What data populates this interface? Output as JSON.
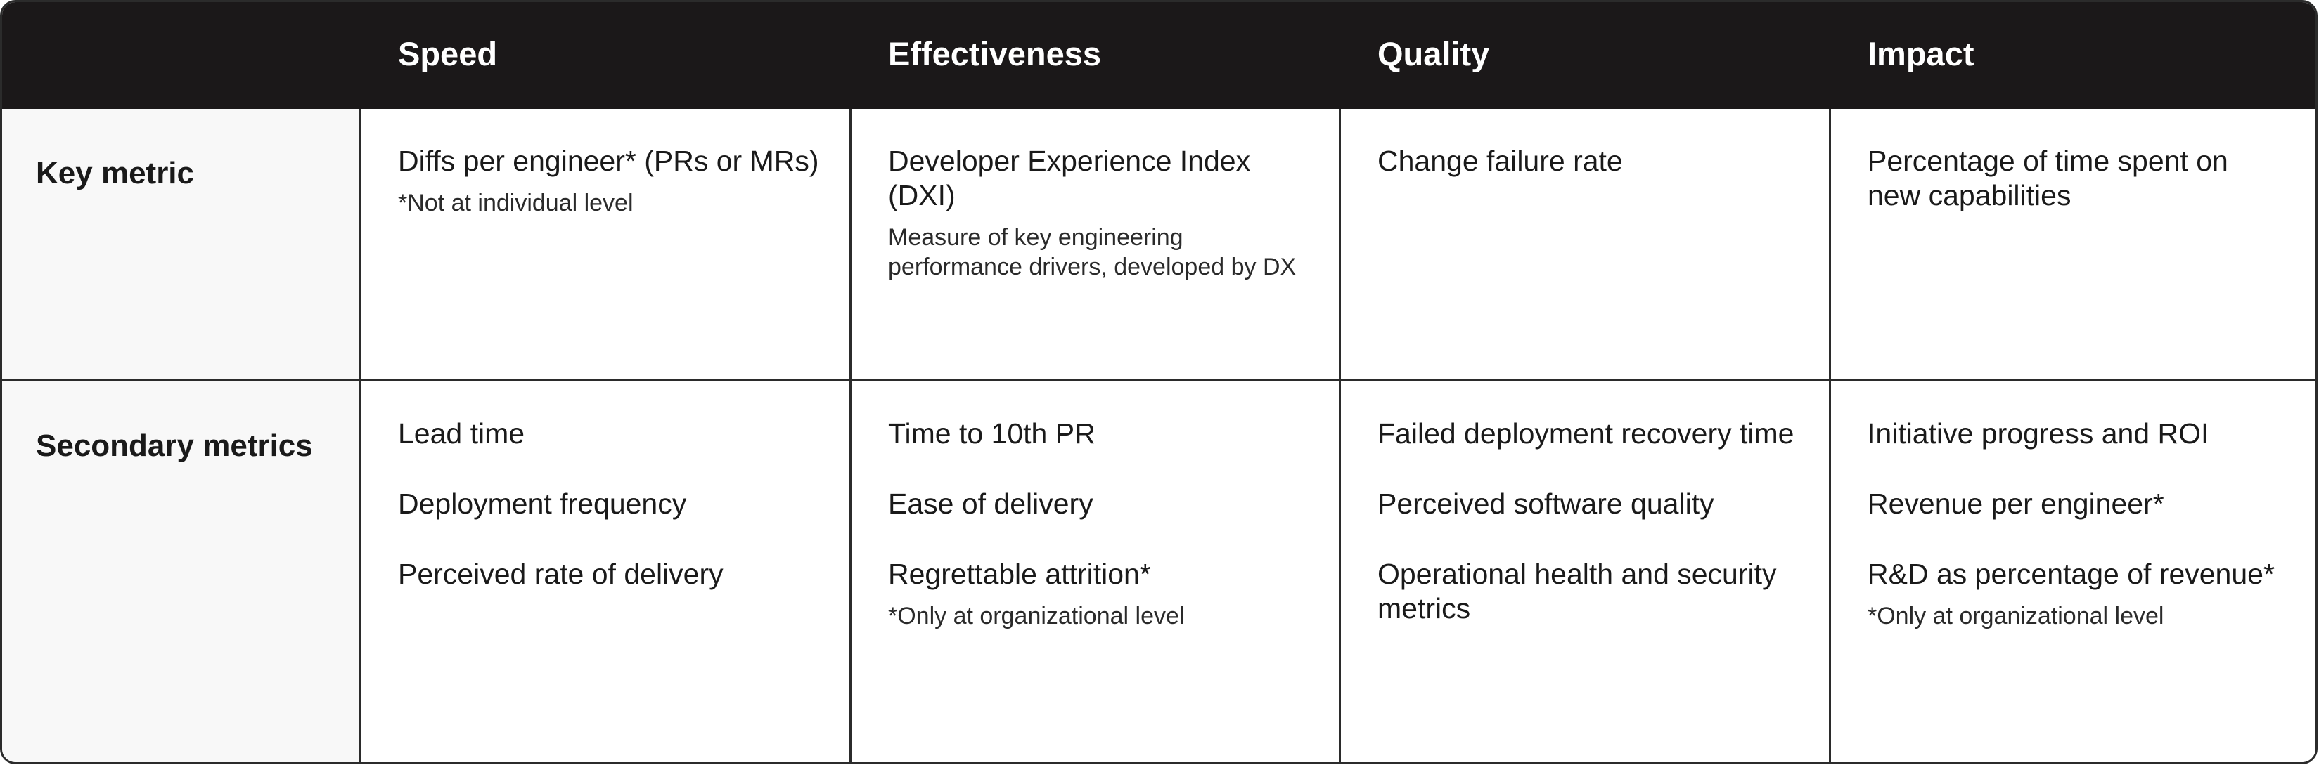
{
  "header": {
    "corner": "",
    "columns": [
      "Speed",
      "Effectiveness",
      "Quality",
      "Impact"
    ]
  },
  "rows": {
    "key": {
      "label": "Key metric",
      "speed": {
        "metric": "Diffs per engineer* (PRs or MRs)",
        "note": "*Not at individual level"
      },
      "effectiveness": {
        "metric": "Developer Experience Index (DXI)",
        "note": "Measure of key engineering performance drivers, developed by DX"
      },
      "quality": {
        "metric": "Change failure rate"
      },
      "impact": {
        "metric": "Percentage of time spent on new capabilities"
      }
    },
    "secondary": {
      "label": "Secondary metrics",
      "speed": [
        "Lead time",
        "Deployment frequency",
        "Perceived rate of delivery"
      ],
      "effectiveness": {
        "items": [
          "Time to 10th PR",
          "Ease of delivery",
          "Regrettable attrition*"
        ],
        "note": "*Only at organizational level"
      },
      "quality": [
        "Failed deployment recovery time",
        "Perceived software quality",
        "Operational health and security metrics"
      ],
      "impact": {
        "items": [
          "Initiative progress and ROI",
          "Revenue per engineer*",
          "R&D as percentage of revenue*"
        ],
        "note": "*Only at organizational level"
      }
    }
  },
  "colors": {
    "header_bg": "#1b1819",
    "header_text": "#ffffff",
    "border": "#2b2b2b",
    "label_bg": "#f8f8f8"
  }
}
